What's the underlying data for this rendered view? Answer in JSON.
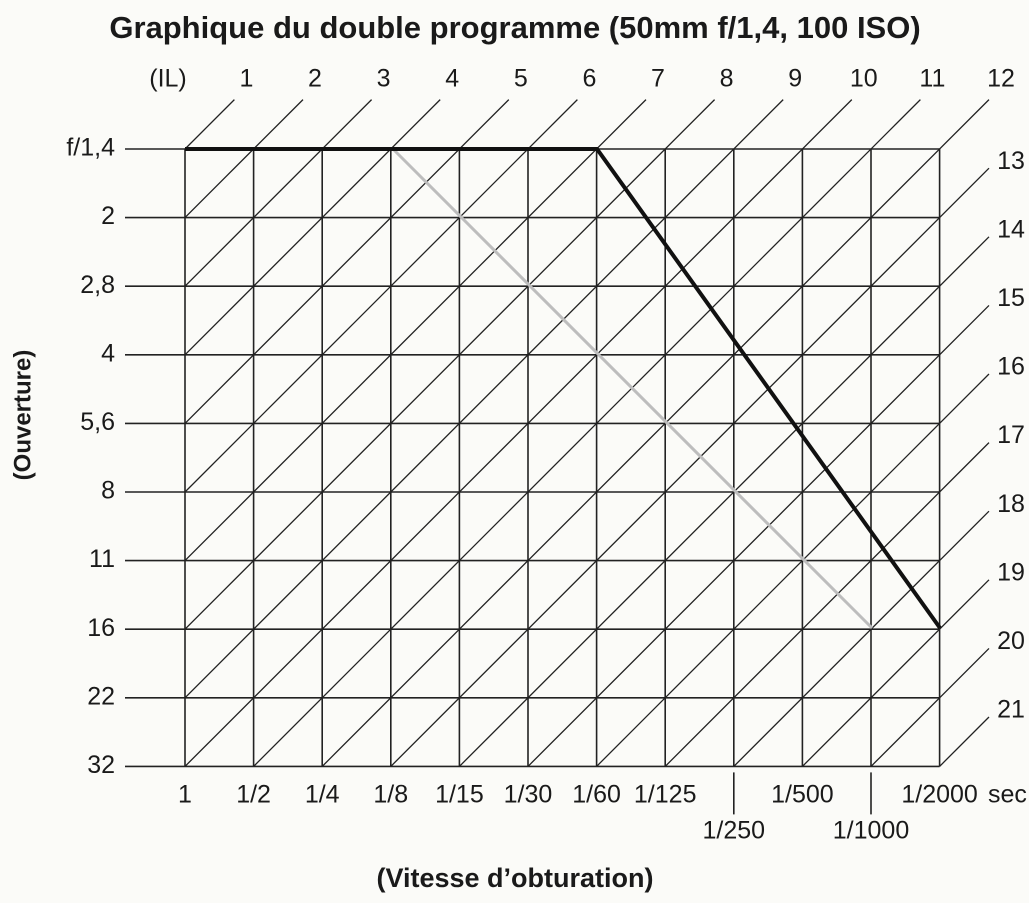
{
  "title": "Graphique du double programme (50mm f/1,4, 100 ISO)",
  "ev_label": "(IL)",
  "ev_values": [
    1,
    2,
    3,
    4,
    5,
    6,
    7,
    8,
    9,
    10,
    11,
    12,
    13,
    14,
    15,
    16,
    17,
    18,
    19,
    20,
    21
  ],
  "aperture_label": "(Ouverture)",
  "apertures": [
    "f/1,4",
    "2",
    "2,8",
    "4",
    "5,6",
    "8",
    "11",
    "16",
    "22",
    "32"
  ],
  "shutter_label": "(Vitesse d’obturation)",
  "shutter_speeds": [
    "1",
    "1/2",
    "1/4",
    "1/8",
    "1/15",
    "1/30",
    "1/60",
    "1/125",
    "1/250",
    "1/500",
    "1/1000",
    "1/2000"
  ],
  "shutter_unit": "sec"
}
